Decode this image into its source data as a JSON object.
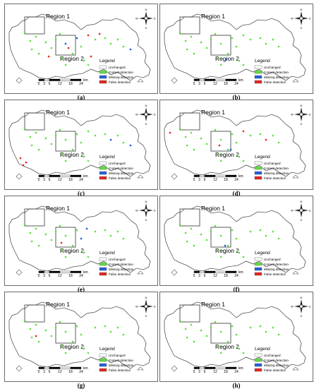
{
  "regions": {
    "r1": "Region 1",
    "r2": "Region 2"
  },
  "legend": {
    "title": "Legend",
    "items": [
      {
        "label": "Unchanged",
        "color": "#ffffff"
      },
      {
        "label": "Correct detection",
        "color": "#5be33a"
      },
      {
        "label": "Missing detection",
        "color": "#1f5fe0"
      },
      {
        "label": "False detection",
        "color": "#e8231d"
      }
    ]
  },
  "scale": {
    "ticks": [
      "0",
      "3",
      "6",
      "12",
      "18",
      "24"
    ],
    "unit": "km"
  },
  "compass": {
    "n": "N",
    "s": "S",
    "e": "E",
    "w": "W"
  },
  "captions": [
    "(a)",
    "(b)",
    "(c)",
    "(d)",
    "(e)",
    "(f)",
    "(g)",
    "(h)"
  ],
  "colors": {
    "correct": "#5be33a",
    "missing": "#1f5fe0",
    "false": "#e8231d",
    "outline": "#555555"
  }
}
